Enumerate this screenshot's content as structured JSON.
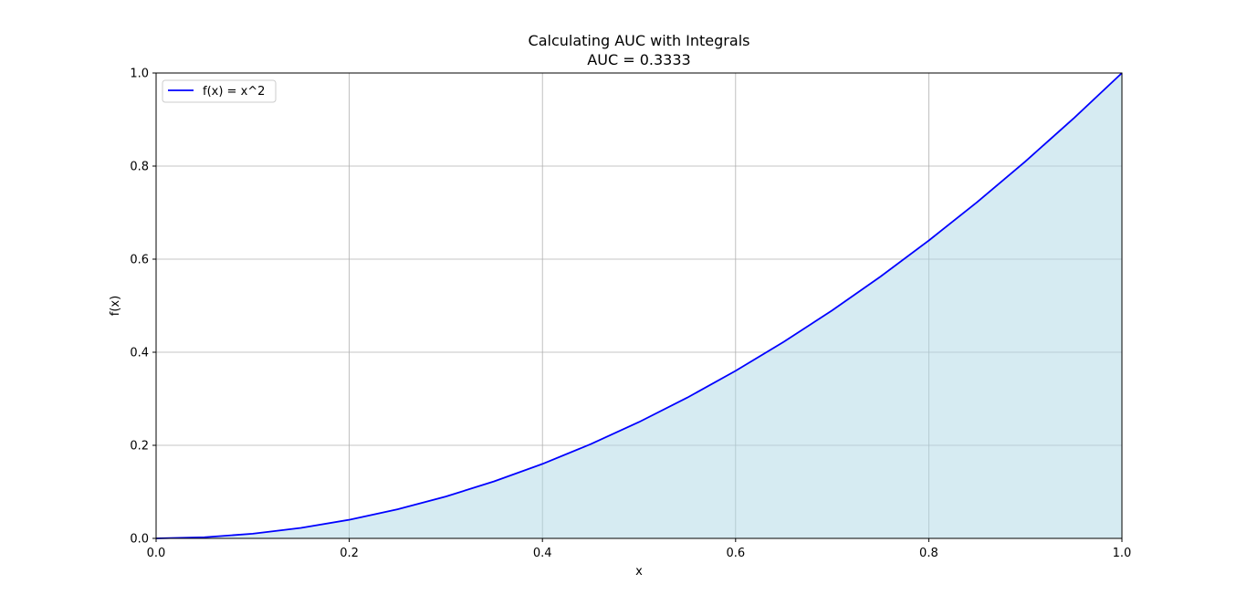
{
  "chart_data": {
    "type": "area",
    "title": "Calculating AUC with Integrals",
    "subtitle": "AUC = 0.3333",
    "xlabel": "x",
    "ylabel": "f(x)",
    "xlim": [
      0.0,
      1.0
    ],
    "ylim": [
      0.0,
      1.0
    ],
    "x_ticks": [
      "0.0",
      "0.2",
      "0.4",
      "0.6",
      "0.8",
      "1.0"
    ],
    "y_ticks": [
      "0.0",
      "0.2",
      "0.4",
      "0.6",
      "0.8",
      "1.0"
    ],
    "grid": true,
    "legend_position": "upper-left",
    "series": [
      {
        "name": "f(x) = x^2",
        "color": "#0000ff",
        "fill_color": "#add8e6",
        "x": [
          0.0,
          0.05,
          0.1,
          0.15,
          0.2,
          0.25,
          0.3,
          0.35,
          0.4,
          0.45,
          0.5,
          0.55,
          0.6,
          0.65,
          0.7,
          0.75,
          0.8,
          0.85,
          0.9,
          0.95,
          1.0
        ],
        "y": [
          0.0,
          0.0025,
          0.01,
          0.0225,
          0.04,
          0.0625,
          0.09,
          0.1225,
          0.16,
          0.2025,
          0.25,
          0.3025,
          0.36,
          0.4225,
          0.49,
          0.5625,
          0.64,
          0.7225,
          0.81,
          0.9025,
          1.0
        ]
      }
    ]
  }
}
